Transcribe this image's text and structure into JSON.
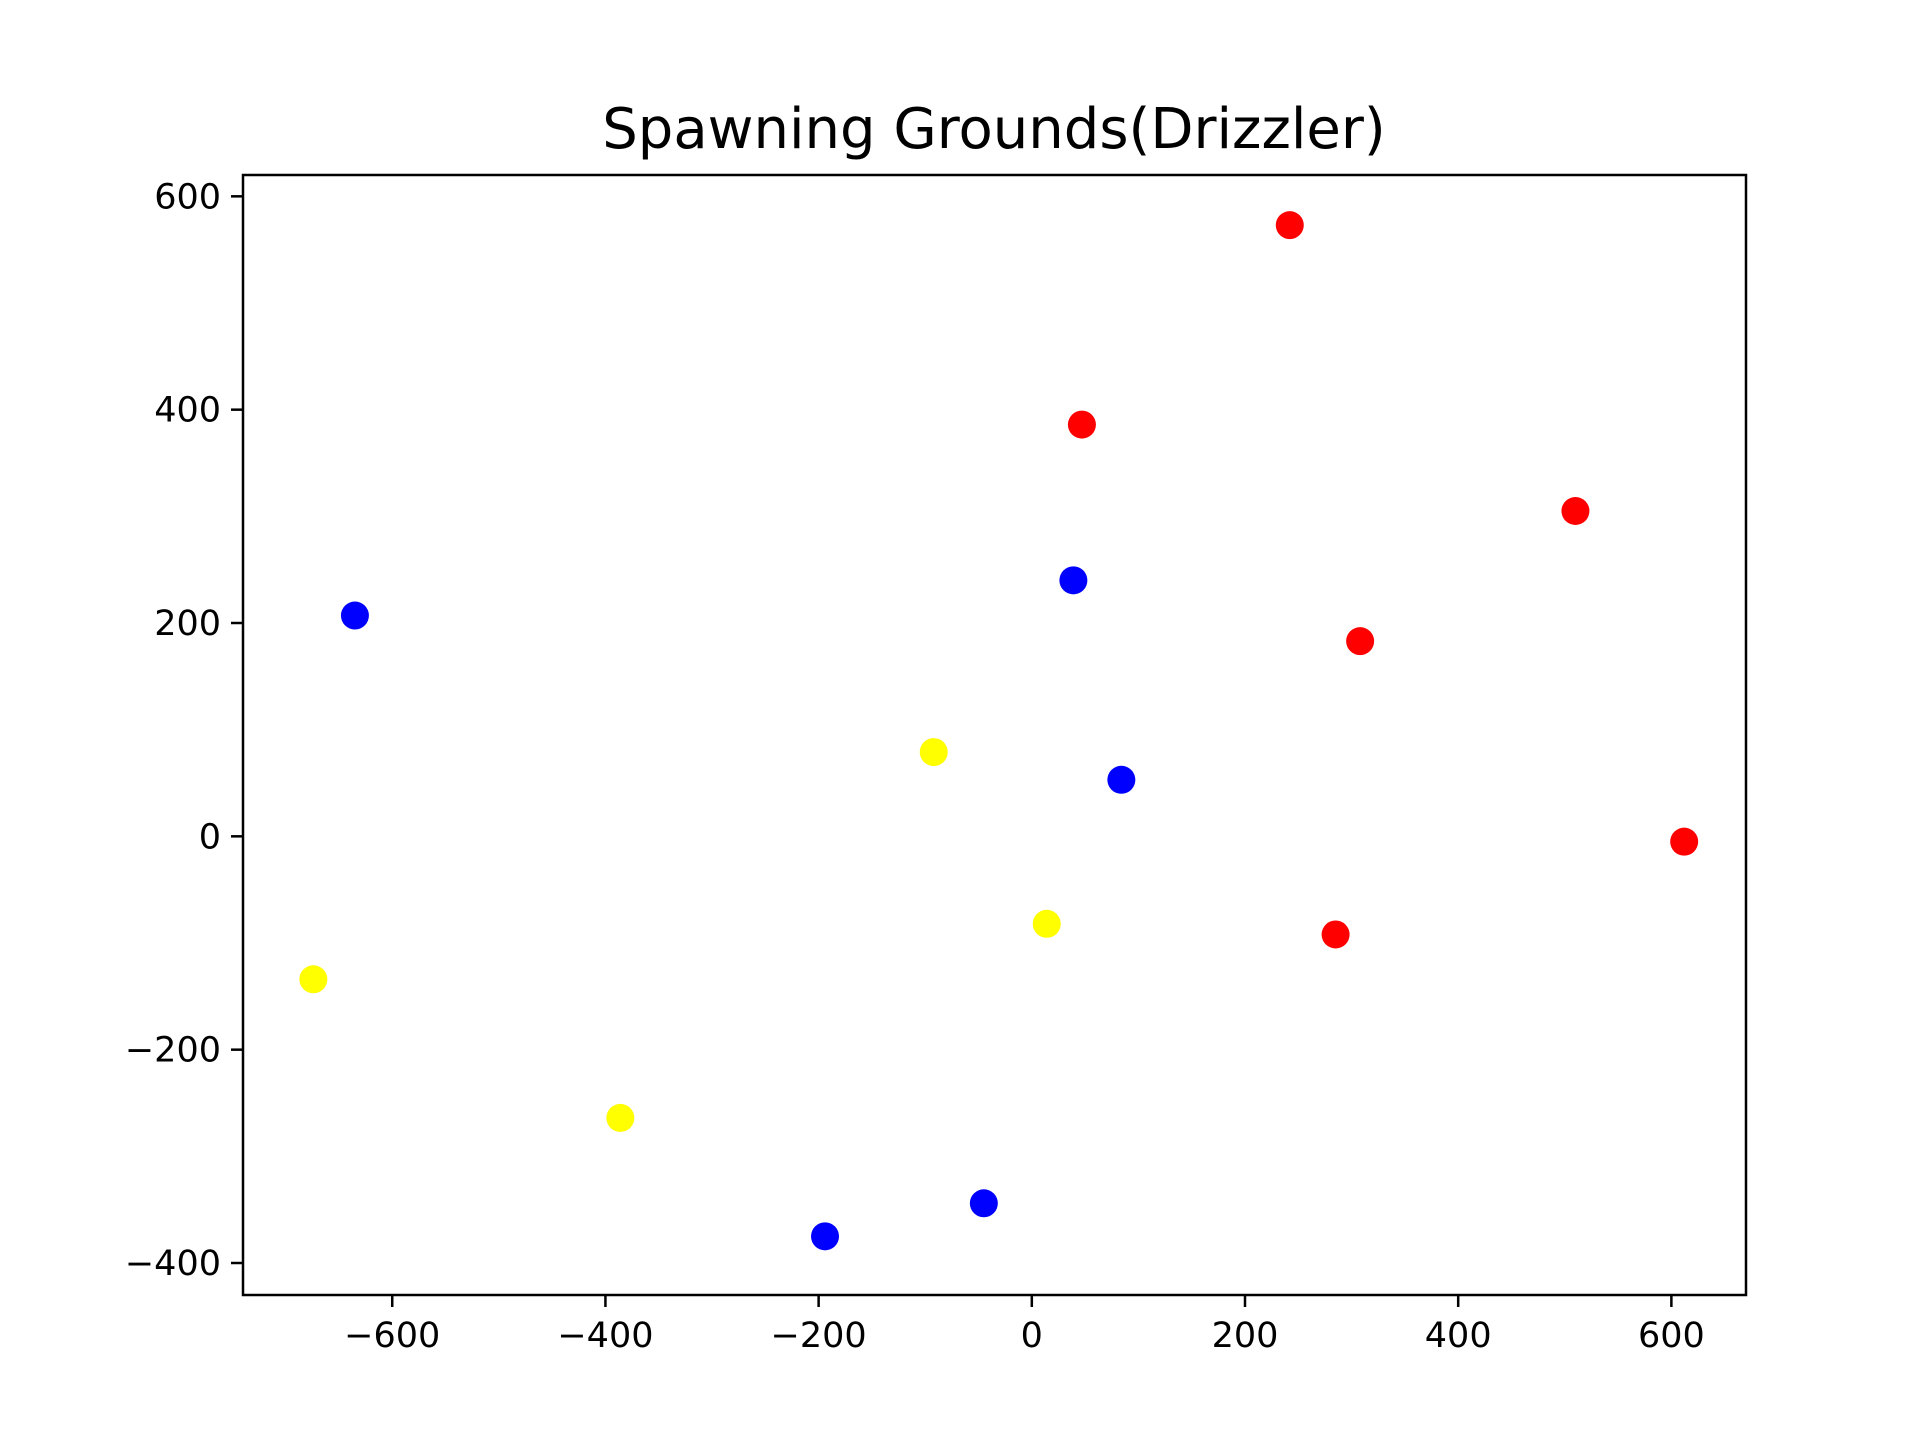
{
  "chart_data": {
    "type": "scatter",
    "title": "Spawning Grounds(Drizzler)",
    "xlabel": "",
    "ylabel": "",
    "xlim": [
      -740,
      670
    ],
    "ylim": [
      -430,
      620
    ],
    "xticks": [
      -600,
      -400,
      -200,
      0,
      200,
      400,
      600
    ],
    "yticks": [
      -400,
      -200,
      0,
      200,
      400,
      600
    ],
    "xtick_labels": [
      "−600",
      "−400",
      "−200",
      "0",
      "200",
      "400",
      "600"
    ],
    "ytick_labels": [
      "−400",
      "−200",
      "0",
      "200",
      "400",
      "600"
    ],
    "grid": false,
    "series": [
      {
        "color": "#ff0000",
        "points": [
          [
            242,
            573
          ],
          [
            47,
            386
          ],
          [
            510,
            305
          ],
          [
            308,
            183
          ],
          [
            612,
            -5
          ],
          [
            285,
            -92
          ]
        ]
      },
      {
        "color": "#0000ff",
        "points": [
          [
            -635,
            207
          ],
          [
            39,
            240
          ],
          [
            84,
            53
          ],
          [
            -45,
            -344
          ],
          [
            -194,
            -375
          ]
        ]
      },
      {
        "color": "#ffff00",
        "points": [
          [
            -92,
            79
          ],
          [
            14,
            -82
          ],
          [
            -674,
            -134
          ],
          [
            -386,
            -264
          ]
        ]
      }
    ]
  }
}
